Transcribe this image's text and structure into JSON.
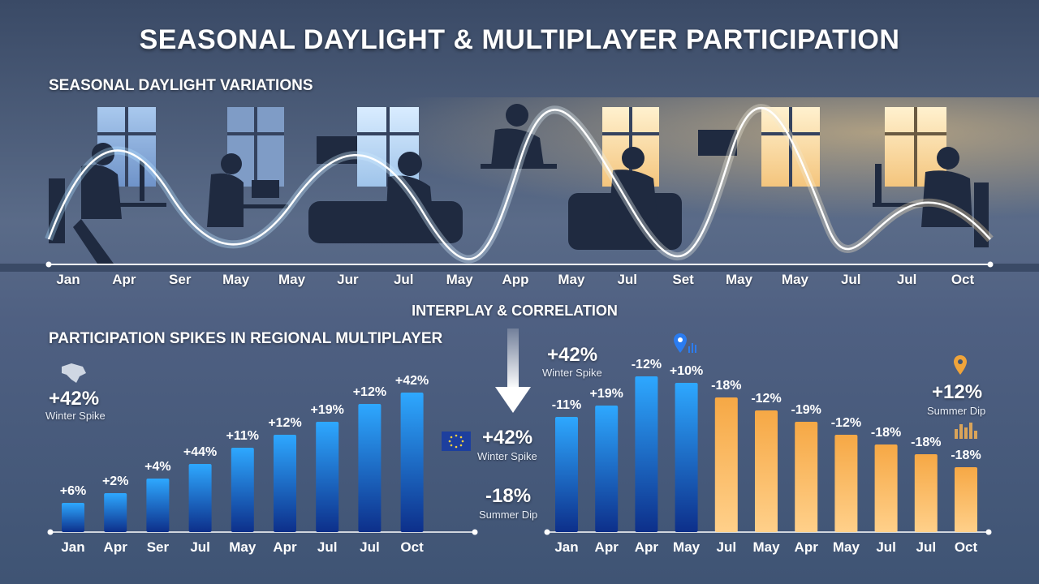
{
  "title": "SEASONAL DAYLIGHT & MULTIPLAYER PARTICIPATION",
  "daylight_section": {
    "title": "SEASONAL DAYLIGHT VARIATIONS",
    "axis_labels": [
      "Jan",
      "Apr",
      "Ser",
      "May",
      "May",
      "Jur",
      "Jul",
      "May",
      "App",
      "May",
      "Jul",
      "Set",
      "May",
      "May",
      "Jul",
      "Jul",
      "Oct"
    ]
  },
  "interplay_label": "INTERPLAY & CORRELATION",
  "participation_section": {
    "title": "PARTICIPATION SPIKES IN REGIONAL MULTIPLAYER"
  },
  "callouts": {
    "left_winter": {
      "value": "+42%",
      "label": "Winter Spike"
    },
    "center_winter": {
      "value": "+42%",
      "label": "Winter Spike"
    },
    "center_summer": {
      "value": "-18%",
      "label": "Summer Dip"
    },
    "right_winter": {
      "value": "+42%",
      "label": "Winter Spike"
    },
    "right_summer": {
      "value": "+12%",
      "label": "Summer Dip"
    }
  },
  "colors": {
    "blue_bar": "#1e6fe0",
    "blue_bar_dark": "#0d2f8a",
    "orange_bar": "#f6a845",
    "orange_bar_light": "#ffd08a",
    "wave_glow": "#bfe4ff",
    "wave_warm": "#ffd49a"
  },
  "chart_data": [
    {
      "type": "bar",
      "categories": [
        "Jan",
        "Apr",
        "Ser",
        "Jul",
        "May",
        "Apr",
        "Jul",
        "Jul",
        "Oct"
      ],
      "values": [
        6,
        2,
        4,
        44,
        11,
        12,
        19,
        12,
        42
      ],
      "value_labels": [
        "+6%",
        "+2%",
        "+4%",
        "+44%",
        "+11%",
        "+12%",
        "+19%",
        "+12%",
        "+42%"
      ]
    },
    {
      "type": "bar",
      "categories": [
        "Jan",
        "Apr",
        "Apr",
        "May",
        "Jul",
        "May",
        "Apr",
        "May",
        "Jul",
        "Jul",
        "Oct"
      ],
      "values": [
        -11,
        19,
        -12,
        10,
        -18,
        -12,
        -19,
        -12,
        -18,
        -18,
        -18
      ],
      "value_labels": [
        "-11%",
        "+19%",
        "-12%",
        "+10%",
        "-18%",
        "-12%",
        "-19%",
        "-12%",
        "-18%",
        "-18%",
        "-18%"
      ],
      "bar_colors": [
        "blue",
        "blue",
        "blue",
        "blue",
        "orange",
        "orange",
        "orange",
        "orange",
        "orange",
        "orange",
        "orange"
      ]
    }
  ]
}
